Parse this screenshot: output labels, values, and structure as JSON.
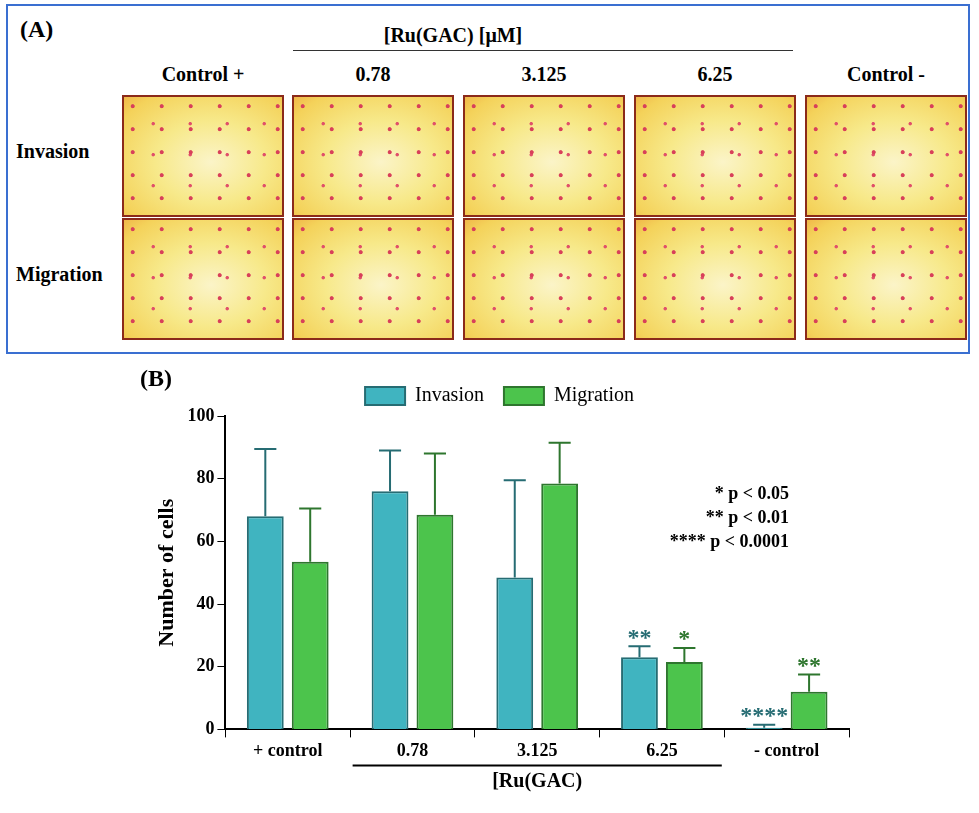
{
  "panel_a": {
    "label": "(A)",
    "header": "[Ru(GAC)   [μM]",
    "columns": [
      "Control +",
      "0.78",
      "3.125",
      "6.25",
      "Control -"
    ],
    "rows": [
      "Invasion",
      "Migration"
    ]
  },
  "chart_data": {
    "type": "bar",
    "panel_label": "(B)",
    "categories": [
      "+ control",
      "0.78",
      "3.125",
      "6.25",
      "- control"
    ],
    "series": [
      {
        "name": "Invasion",
        "color": "#40b4c0",
        "values": [
          68,
          76,
          48.5,
          23,
          0.5
        ],
        "errors": [
          21.5,
          13,
          31,
          3.5,
          1
        ],
        "significance": [
          null,
          null,
          null,
          "**",
          "****"
        ]
      },
      {
        "name": "Migration",
        "color": "#4cc44c",
        "values": [
          53.5,
          68.5,
          78.5,
          21.5,
          12
        ],
        "errors": [
          17,
          19.5,
          13,
          4.5,
          5.5
        ],
        "significance": [
          null,
          null,
          null,
          "*",
          "**"
        ]
      }
    ],
    "group": {
      "label": "[Ru(GAC)",
      "members": [
        "0.78",
        "3.125",
        "6.25"
      ]
    },
    "y_label": "Number of cells",
    "ylim": [
      0,
      100
    ],
    "yticks": [
      0,
      20,
      40,
      60,
      80,
      100
    ],
    "grid": false,
    "legend": "top",
    "annotations": [
      "* p < 0.05",
      "** p < 0.01",
      "**** p < 0.0001"
    ]
  }
}
